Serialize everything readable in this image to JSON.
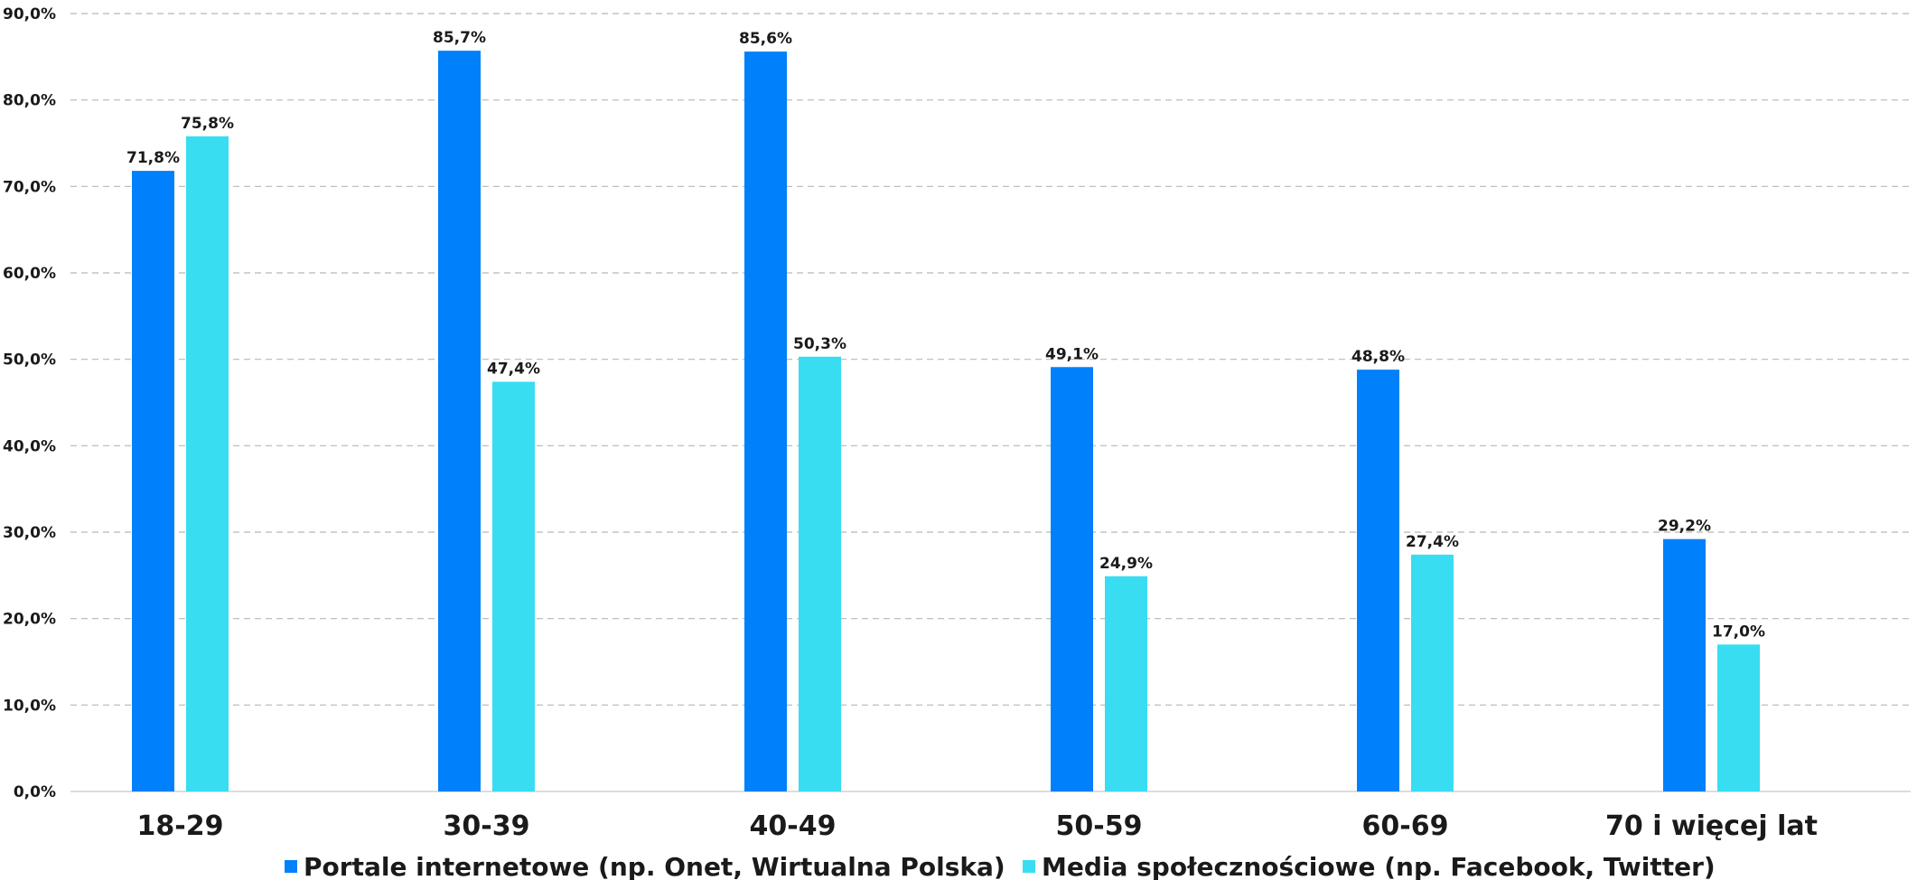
{
  "chart_data": {
    "type": "bar",
    "categories": [
      "18-29",
      "30-39",
      "40-49",
      "50-59",
      "60-69",
      "70 i więcej lat"
    ],
    "series": [
      {
        "name": "Portale internetowe (np. Onet, Wirtualna Polska)",
        "color": "#0080FA",
        "values": [
          71.8,
          85.7,
          85.6,
          49.1,
          48.8,
          29.2
        ],
        "labels": [
          "71,8%",
          "85,7%",
          "85,6%",
          "49,1%",
          "48,8%",
          "29,2%"
        ]
      },
      {
        "name": "Media społecznościowe (np. Facebook, Twitter)",
        "color": "#38DDF2",
        "values": [
          75.8,
          47.4,
          50.3,
          24.9,
          27.4,
          17.0
        ],
        "labels": [
          "75,8%",
          "47,4%",
          "50,3%",
          "24,9%",
          "27,4%",
          "17,0%"
        ]
      }
    ],
    "yticks": [
      0,
      10,
      20,
      30,
      40,
      50,
      60,
      70,
      80,
      90
    ],
    "ytick_labels": [
      "0,0%",
      "10,0%",
      "20,0%",
      "30,0%",
      "40,0%",
      "50,0%",
      "60,0%",
      "70,0%",
      "80,0%",
      "90,0%"
    ],
    "ylim": [
      0,
      90
    ],
    "grid": true,
    "legend_position": "bottom"
  }
}
